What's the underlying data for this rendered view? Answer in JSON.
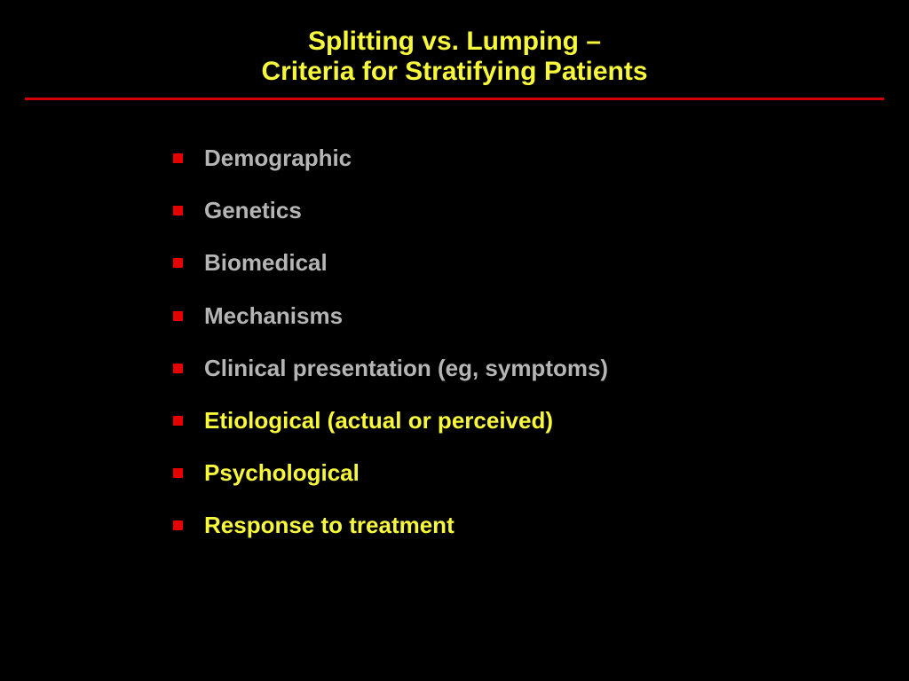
{
  "background_color": "#000000",
  "title": {
    "line1": "Splitting vs. Lumping –",
    "line2": "Criteria for Stratifying Patients",
    "color": "#f7f73b",
    "fontsize": 30,
    "font_weight": "bold"
  },
  "divider": {
    "color": "#d20000",
    "thickness": 3
  },
  "bullets": {
    "marker_color": "#e60000",
    "fontsize": 26,
    "items": [
      {
        "text": "Demographic",
        "color": "#b5b5b5"
      },
      {
        "text": "Genetics",
        "color": "#b5b5b5"
      },
      {
        "text": "Biomedical",
        "color": "#b5b5b5"
      },
      {
        "text": "Mechanisms",
        "color": "#b5b5b5"
      },
      {
        "text": "Clinical presentation (eg, symptoms)",
        "color": "#b5b5b5"
      },
      {
        "text": "Etiological (actual or perceived)",
        "color": "#f7f73b"
      },
      {
        "text": "Psychological",
        "color": "#f7f73b"
      },
      {
        "text": "Response to treatment",
        "color": "#f7f73b"
      }
    ]
  }
}
